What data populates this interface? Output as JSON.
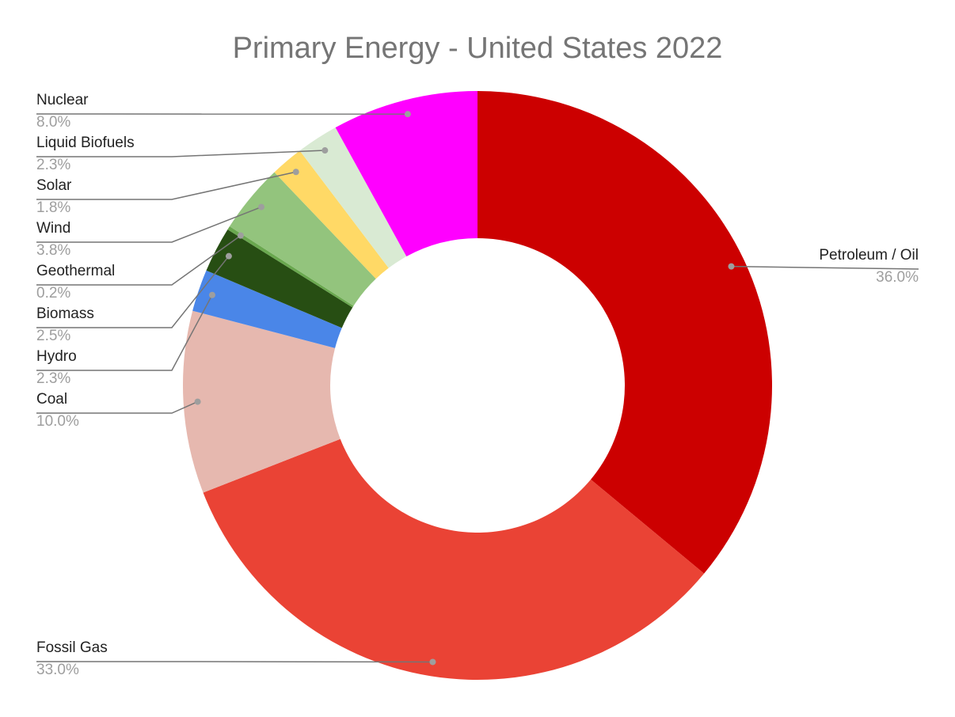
{
  "chart_data": {
    "type": "pie",
    "donut": true,
    "title": "Primary Energy - United States 2022",
    "start": "top, clockwise",
    "slices": [
      {
        "label": "Petroleum / Oil",
        "value": 36.0,
        "display": "36.0%",
        "color": "#cc0000"
      },
      {
        "label": "Fossil Gas",
        "value": 33.0,
        "display": "33.0%",
        "color": "#ea4335"
      },
      {
        "label": "Coal",
        "value": 10.0,
        "display": "10.0%",
        "color": "#e6b8af"
      },
      {
        "label": "Hydro",
        "value": 2.3,
        "display": "2.3%",
        "color": "#4a86e8"
      },
      {
        "label": "Biomass",
        "value": 2.5,
        "display": "2.5%",
        "color": "#274e13"
      },
      {
        "label": "Geothermal",
        "value": 0.2,
        "display": "0.2%",
        "color": "#6aa84f"
      },
      {
        "label": "Wind",
        "value": 3.8,
        "display": "3.8%",
        "color": "#93c47d"
      },
      {
        "label": "Solar",
        "value": 1.8,
        "display": "1.8%",
        "color": "#ffd966"
      },
      {
        "label": "Liquid Biofuels",
        "value": 2.3,
        "display": "2.3%",
        "color": "#d9ead3"
      },
      {
        "label": "Nuclear",
        "value": 8.0,
        "display": "8.0%",
        "color": "#ff00ff"
      }
    ]
  }
}
